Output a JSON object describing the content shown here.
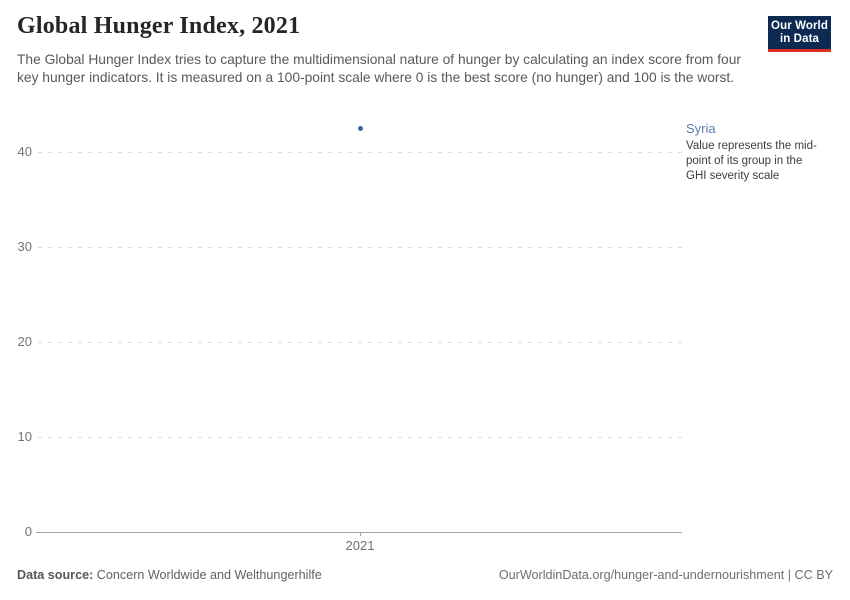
{
  "header": {
    "title": "Global Hunger Index, 2021",
    "subtitle": "The Global Hunger Index tries to capture the multidimensional nature of hunger by calculating an index score from four key hunger indicators. It is measured on a 100-point scale where 0 is the best score (no hunger) and 100 is the worst.",
    "logo": {
      "line1": "Our World",
      "line2": "in Data",
      "bg_color": "#0c2a52",
      "accent_color": "#dc2f1e"
    }
  },
  "chart_data": {
    "type": "scatter",
    "title": "Global Hunger Index, 2021",
    "x": [
      2021
    ],
    "series": [
      {
        "name": "Syria",
        "values": [
          42.5
        ],
        "color": "#3a62a5"
      }
    ],
    "xlabel": "",
    "ylabel": "",
    "ylim": [
      0,
      43.8
    ],
    "yticks": [
      0,
      10,
      20,
      30,
      40
    ],
    "xticks": [
      "2021"
    ],
    "grid": "horizontal-dashed",
    "legend_position": "right"
  },
  "legend": {
    "entity": "Syria",
    "entity_color": "#5b7cb5",
    "note": "Value represents the mid-point of its group in the GHI severity scale"
  },
  "footer": {
    "source_label": "Data source:",
    "source_value": "Concern Worldwide and Welthungerhilfe",
    "attribution": "OurWorldinData.org/hunger-and-undernourishment | CC BY"
  }
}
